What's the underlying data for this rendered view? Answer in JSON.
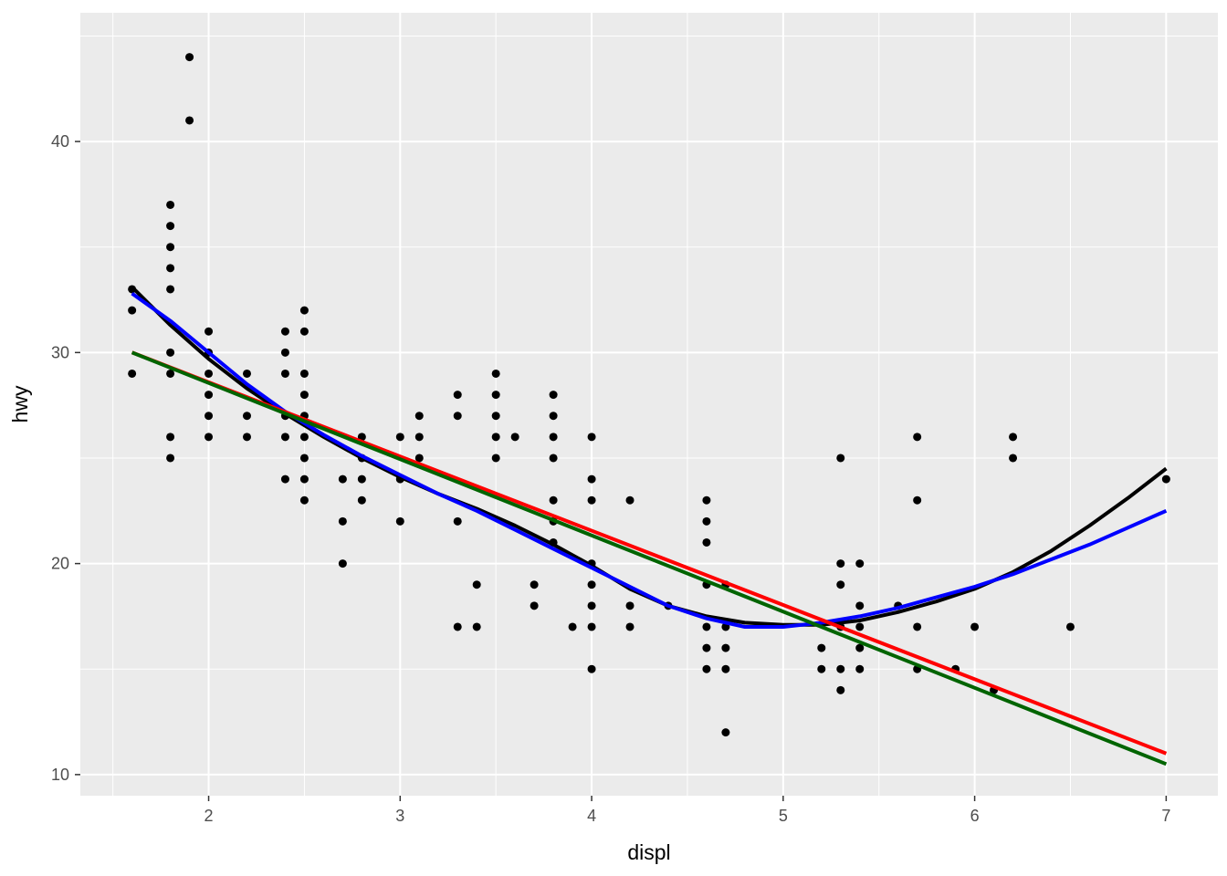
{
  "chart_data": {
    "type": "scatter",
    "title": "",
    "xlabel": "displ",
    "ylabel": "hwy",
    "xlim": [
      1.33,
      7.27
    ],
    "ylim": [
      9.0,
      46.1
    ],
    "x_ticks": [
      2,
      3,
      4,
      5,
      6,
      7
    ],
    "y_ticks": [
      10,
      20,
      30,
      40
    ],
    "x_tick_labels": [
      "2",
      "3",
      "4",
      "5",
      "6",
      "7"
    ],
    "y_tick_labels": [
      "10",
      "20",
      "30",
      "40"
    ],
    "grid": true,
    "legend": "none",
    "colors": {
      "panel_background": "#ebebeb",
      "grid": "#ffffff",
      "points": "#000000",
      "loess_black": "#000000",
      "loess_blue": "#0000ff",
      "lm_red": "#ff0000",
      "lm_green": "#006400"
    },
    "points": [
      [
        1.6,
        33
      ],
      [
        1.6,
        32
      ],
      [
        1.6,
        29
      ],
      [
        1.8,
        37
      ],
      [
        1.8,
        36
      ],
      [
        1.8,
        35
      ],
      [
        1.8,
        34
      ],
      [
        1.8,
        33
      ],
      [
        1.8,
        30
      ],
      [
        1.8,
        29
      ],
      [
        1.8,
        26
      ],
      [
        1.8,
        25
      ],
      [
        1.9,
        44
      ],
      [
        1.9,
        41
      ],
      [
        2.0,
        31
      ],
      [
        2.0,
        30
      ],
      [
        2.0,
        29
      ],
      [
        2.0,
        28
      ],
      [
        2.0,
        27
      ],
      [
        2.0,
        26
      ],
      [
        2.2,
        29
      ],
      [
        2.2,
        27
      ],
      [
        2.2,
        26
      ],
      [
        2.4,
        31
      ],
      [
        2.4,
        30
      ],
      [
        2.4,
        29
      ],
      [
        2.4,
        27
      ],
      [
        2.4,
        26
      ],
      [
        2.4,
        24
      ],
      [
        2.5,
        32
      ],
      [
        2.5,
        31
      ],
      [
        2.5,
        29
      ],
      [
        2.5,
        28
      ],
      [
        2.5,
        27
      ],
      [
        2.5,
        26
      ],
      [
        2.5,
        25
      ],
      [
        2.5,
        24
      ],
      [
        2.5,
        23
      ],
      [
        2.7,
        24
      ],
      [
        2.7,
        22
      ],
      [
        2.7,
        20
      ],
      [
        2.8,
        26
      ],
      [
        2.8,
        25
      ],
      [
        2.8,
        24
      ],
      [
        2.8,
        23
      ],
      [
        3.0,
        26
      ],
      [
        3.0,
        24
      ],
      [
        3.0,
        22
      ],
      [
        3.1,
        27
      ],
      [
        3.1,
        26
      ],
      [
        3.1,
        25
      ],
      [
        3.3,
        28
      ],
      [
        3.3,
        27
      ],
      [
        3.3,
        22
      ],
      [
        3.3,
        17
      ],
      [
        3.4,
        19
      ],
      [
        3.4,
        17
      ],
      [
        3.5,
        29
      ],
      [
        3.5,
        28
      ],
      [
        3.5,
        27
      ],
      [
        3.5,
        26
      ],
      [
        3.5,
        25
      ],
      [
        3.6,
        26
      ],
      [
        3.7,
        19
      ],
      [
        3.7,
        18
      ],
      [
        3.8,
        28
      ],
      [
        3.8,
        27
      ],
      [
        3.8,
        26
      ],
      [
        3.8,
        25
      ],
      [
        3.8,
        23
      ],
      [
        3.8,
        22
      ],
      [
        3.8,
        21
      ],
      [
        3.9,
        17
      ],
      [
        4.0,
        26
      ],
      [
        4.0,
        24
      ],
      [
        4.0,
        23
      ],
      [
        4.0,
        20
      ],
      [
        4.0,
        19
      ],
      [
        4.0,
        18
      ],
      [
        4.0,
        17
      ],
      [
        4.0,
        15
      ],
      [
        4.2,
        23
      ],
      [
        4.2,
        18
      ],
      [
        4.2,
        17
      ],
      [
        4.4,
        18
      ],
      [
        4.6,
        23
      ],
      [
        4.6,
        22
      ],
      [
        4.6,
        21
      ],
      [
        4.6,
        19
      ],
      [
        4.6,
        17
      ],
      [
        4.6,
        16
      ],
      [
        4.6,
        15
      ],
      [
        4.7,
        19
      ],
      [
        4.7,
        17
      ],
      [
        4.7,
        16
      ],
      [
        4.7,
        15
      ],
      [
        4.7,
        12
      ],
      [
        5.2,
        16
      ],
      [
        5.2,
        15
      ],
      [
        5.3,
        25
      ],
      [
        5.3,
        20
      ],
      [
        5.3,
        19
      ],
      [
        5.3,
        17
      ],
      [
        5.3,
        15
      ],
      [
        5.3,
        14
      ],
      [
        5.4,
        20
      ],
      [
        5.4,
        18
      ],
      [
        5.4,
        17
      ],
      [
        5.4,
        16
      ],
      [
        5.4,
        15
      ],
      [
        5.6,
        18
      ],
      [
        5.7,
        26
      ],
      [
        5.7,
        23
      ],
      [
        5.7,
        17
      ],
      [
        5.7,
        15
      ],
      [
        5.9,
        15
      ],
      [
        6.0,
        17
      ],
      [
        6.1,
        14
      ],
      [
        6.2,
        26
      ],
      [
        6.2,
        25
      ],
      [
        6.5,
        17
      ],
      [
        7.0,
        24
      ]
    ],
    "series": [
      {
        "type": "smooth-loess",
        "color": "#000000",
        "x": [
          1.6,
          1.8,
          2.0,
          2.2,
          2.4,
          2.6,
          2.8,
          3.0,
          3.2,
          3.4,
          3.6,
          3.8,
          4.0,
          4.2,
          4.4,
          4.6,
          4.8,
          5.0,
          5.2,
          5.4,
          5.6,
          5.8,
          6.0,
          6.2,
          6.4,
          6.6,
          6.8,
          7.0
        ],
        "y": [
          33.1,
          31.3,
          29.7,
          28.3,
          27.1,
          26.0,
          25.0,
          24.1,
          23.3,
          22.6,
          21.8,
          20.9,
          19.9,
          18.8,
          18.0,
          17.5,
          17.2,
          17.1,
          17.1,
          17.3,
          17.7,
          18.2,
          18.8,
          19.6,
          20.6,
          21.8,
          23.1,
          24.5
        ]
      },
      {
        "type": "smooth-loess",
        "color": "#0000ff",
        "x": [
          1.6,
          1.8,
          2.0,
          2.2,
          2.4,
          2.6,
          2.8,
          3.0,
          3.2,
          3.4,
          3.6,
          3.8,
          4.0,
          4.2,
          4.4,
          4.6,
          4.8,
          5.0,
          5.2,
          5.4,
          5.6,
          5.8,
          6.0,
          6.2,
          6.4,
          6.6,
          6.8,
          7.0
        ],
        "y": [
          32.8,
          31.5,
          30.0,
          28.5,
          27.2,
          26.1,
          25.1,
          24.2,
          23.3,
          22.5,
          21.6,
          20.7,
          19.8,
          18.9,
          18.0,
          17.4,
          17.0,
          17.0,
          17.2,
          17.5,
          17.9,
          18.4,
          18.9,
          19.5,
          20.2,
          20.9,
          21.7,
          22.5
        ]
      },
      {
        "type": "smooth-lm",
        "color": "#ff0000",
        "x": [
          1.6,
          7.0
        ],
        "y": [
          30.0,
          11.0
        ]
      },
      {
        "type": "smooth-lm",
        "color": "#006400",
        "x": [
          1.6,
          7.0
        ],
        "y": [
          30.0,
          10.5
        ]
      }
    ]
  }
}
